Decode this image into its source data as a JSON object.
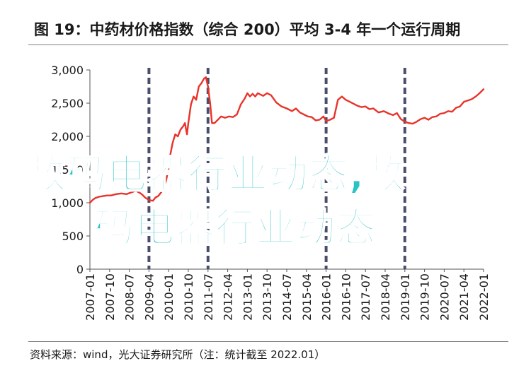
{
  "header": {
    "title": "图 19：中药材价格指数（综合 200）平均 3-4 年一个运行周期"
  },
  "footer": {
    "source": "资料来源：wind，光大证券研究所（注：统计截至 2022.01）"
  },
  "watermark": {
    "line1": "数码电器行业动态,数",
    "line2": "码电器行业动态"
  },
  "chart_data": {
    "type": "line",
    "title": "中药材价格指数（综合 200）",
    "xlabel": "",
    "ylabel": "",
    "ylim": [
      0,
      3000
    ],
    "yticks": [
      0,
      500,
      1000,
      1500,
      2000,
      2500,
      3000
    ],
    "ytick_labels": [
      "0",
      "500",
      "1,000",
      "1,500",
      "2,000",
      "2,500",
      "3,000"
    ],
    "xlim": [
      2007.0,
      2022.0
    ],
    "xtick_labels": [
      "2007-01",
      "2007-10",
      "2008-07",
      "2009-04",
      "2010-01",
      "2010-10",
      "2011-07",
      "2012-04",
      "2013-01",
      "2013-10",
      "2014-07",
      "2015-04",
      "2016-01",
      "2016-10",
      "2017-07",
      "2018-04",
      "2019-01",
      "2019-10",
      "2020-07",
      "2021-04",
      "2022-01"
    ],
    "cycle_markers": [
      "2009-04",
      "2011-07",
      "2016-01",
      "2019-01"
    ],
    "series": [
      {
        "name": "",
        "color": "#e8332a",
        "x": [
          2007.0,
          2007.1,
          2007.2,
          2007.35,
          2007.5,
          2007.65,
          2007.8,
          2008.0,
          2008.2,
          2008.4,
          2008.6,
          2008.75,
          2008.9,
          2009.0,
          2009.1,
          2009.25,
          2009.4,
          2009.5,
          2009.6,
          2009.7,
          2009.8,
          2009.9,
          2010.0,
          2010.05,
          2010.15,
          2010.25,
          2010.35,
          2010.45,
          2010.55,
          2010.62,
          2010.7,
          2010.75,
          2010.85,
          2010.95,
          2011.05,
          2011.15,
          2011.25,
          2011.35,
          2011.42,
          2011.5,
          2011.58,
          2011.65,
          2011.75,
          2011.85,
          2012.0,
          2012.15,
          2012.3,
          2012.45,
          2012.6,
          2012.75,
          2012.9,
          2013.0,
          2013.1,
          2013.2,
          2013.3,
          2013.4,
          2013.5,
          2013.6,
          2013.75,
          2013.9,
          2014.1,
          2014.3,
          2014.5,
          2014.7,
          2014.85,
          2015.0,
          2015.15,
          2015.3,
          2015.45,
          2015.6,
          2015.75,
          2015.9,
          2016.0,
          2016.15,
          2016.3,
          2016.45,
          2016.6,
          2016.75,
          2016.9,
          2017.05,
          2017.2,
          2017.35,
          2017.5,
          2017.65,
          2017.8,
          2018.0,
          2018.2,
          2018.4,
          2018.55,
          2018.7,
          2018.85,
          2019.0,
          2019.15,
          2019.3,
          2019.45,
          2019.6,
          2019.75,
          2019.9,
          2020.05,
          2020.2,
          2020.35,
          2020.5,
          2020.65,
          2020.8,
          2020.95,
          2021.1,
          2021.25,
          2021.4,
          2021.55,
          2021.7,
          2021.85,
          2022.0
        ],
        "values": [
          1000,
          1040,
          1070,
          1090,
          1100,
          1110,
          1110,
          1130,
          1140,
          1130,
          1160,
          1180,
          1150,
          1120,
          1080,
          1040,
          1030,
          1080,
          1100,
          1150,
          1200,
          1330,
          1520,
          1700,
          1900,
          2030,
          2000,
          2100,
          2150,
          2200,
          2030,
          2200,
          2480,
          2600,
          2550,
          2750,
          2800,
          2870,
          2890,
          2750,
          2500,
          2200,
          2200,
          2240,
          2300,
          2280,
          2300,
          2290,
          2330,
          2480,
          2570,
          2650,
          2600,
          2640,
          2600,
          2650,
          2630,
          2610,
          2650,
          2620,
          2510,
          2450,
          2420,
          2380,
          2420,
          2360,
          2330,
          2300,
          2290,
          2240,
          2250,
          2300,
          2230,
          2250,
          2280,
          2550,
          2600,
          2550,
          2520,
          2490,
          2460,
          2440,
          2450,
          2410,
          2420,
          2360,
          2380,
          2340,
          2320,
          2350,
          2260,
          2220,
          2200,
          2190,
          2220,
          2260,
          2280,
          2250,
          2290,
          2300,
          2340,
          2350,
          2380,
          2370,
          2430,
          2450,
          2520,
          2540,
          2560,
          2600,
          2650,
          2710
        ]
      }
    ]
  }
}
